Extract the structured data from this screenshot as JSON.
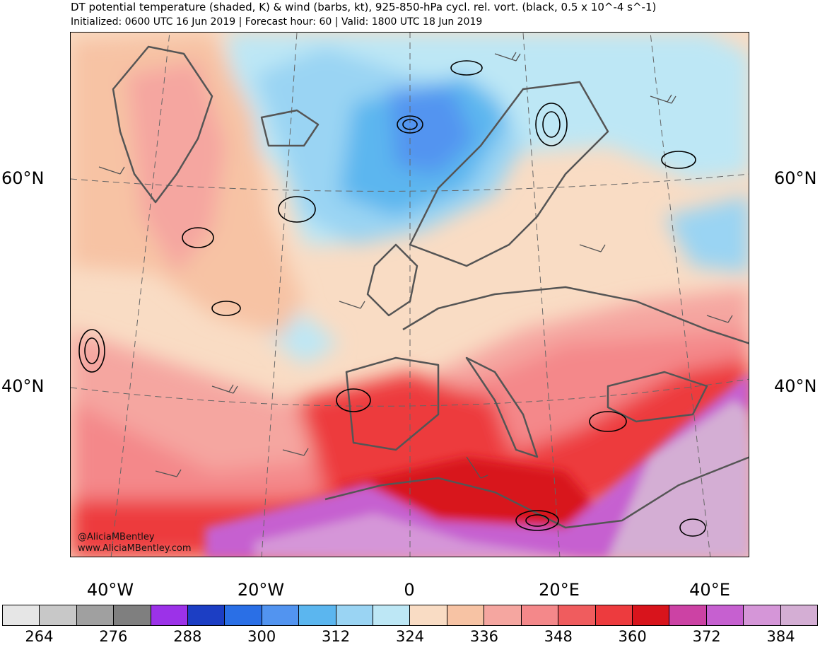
{
  "header": {
    "title": "DT potential temperature (shaded, K) & wind (barbs, kt), 925-850-hPa cycl. rel. vort. (black, 0.5 x 10^-4 s^-1)",
    "subtitle": "Initialized: 0600 UTC 16 Jun 2019 | Forecast hour: 60 | Valid: 1800 UTC 18 Jun 2019"
  },
  "map": {
    "lat_labels": [
      "60°N",
      "40°N"
    ],
    "lon_labels": [
      "40°W",
      "20°W",
      "0",
      "20°E",
      "40°E"
    ],
    "credit_line1": "@AliciaMBentley",
    "credit_line2": "www.AliciaMBentley.com"
  },
  "colorbar": {
    "colors": [
      "#e6e6e6",
      "#c8c8c8",
      "#a0a0a0",
      "#7f7f7f",
      "#9c32e8",
      "#1c3ec4",
      "#2a6fe6",
      "#5294f0",
      "#5bb6ef",
      "#9ad4f3",
      "#bde7f5",
      "#f9dcc4",
      "#f7c3a4",
      "#f5a6a0",
      "#f4888a",
      "#f05c5e",
      "#ed3b3e",
      "#d8141c",
      "#cc42a4",
      "#c660d0",
      "#d596d8",
      "#d4aed4"
    ],
    "labels": [
      "264",
      "276",
      "288",
      "300",
      "312",
      "324",
      "336",
      "348",
      "360",
      "372",
      "384"
    ]
  }
}
